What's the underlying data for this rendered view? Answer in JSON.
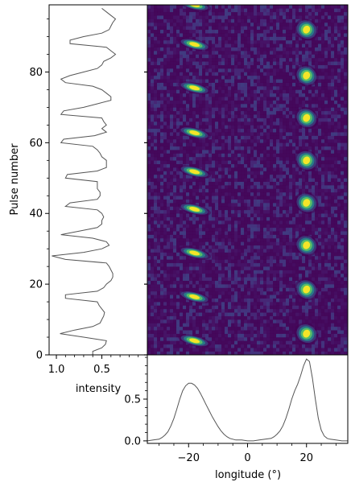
{
  "chart_data": [
    {
      "type": "line",
      "panel": "pulse-energy",
      "xlabel": "intensity",
      "ylabel": "",
      "x_inverted": true,
      "xlim": [
        1.08,
        0.0
      ],
      "ylim": [
        0,
        99
      ],
      "xticks": [
        1.0,
        0.5
      ],
      "xtick_labels": [
        "1.0",
        "0.5"
      ],
      "series": [
        {
          "x": [
            0.6,
            0.6,
            0.5,
            0.46,
            0.45,
            0.7,
            0.96,
            0.8,
            0.6,
            0.52,
            0.5,
            0.48,
            0.47,
            0.5,
            0.53,
            0.55,
            0.9,
            0.9,
            0.55,
            0.48,
            0.45,
            0.4,
            0.38,
            0.38,
            0.4,
            0.42,
            0.45,
            0.9,
            1.05,
            0.7,
            0.5,
            0.42,
            0.45,
            0.6,
            0.95,
            0.75,
            0.55,
            0.5,
            0.5,
            0.48,
            0.5,
            0.55,
            0.9,
            0.85,
            0.55,
            0.52,
            0.52,
            0.55,
            0.55,
            0.55,
            0.9,
            0.88,
            0.55,
            0.45,
            0.45,
            0.45,
            0.5,
            0.52,
            0.55,
            0.6,
            0.95,
            0.92,
            0.58,
            0.45,
            0.5,
            0.45,
            0.48,
            0.5,
            0.95,
            0.92,
            0.7,
            0.55,
            0.4,
            0.4,
            0.45,
            0.5,
            0.6,
            0.9,
            0.95,
            0.85,
            0.7,
            0.55,
            0.5,
            0.48,
            0.4,
            0.35,
            0.4,
            0.45,
            0.85,
            0.85,
            0.7,
            0.5,
            0.42,
            0.4,
            0.38,
            0.35,
            0.4,
            0.45,
            0.5
          ],
          "y": [
            0,
            1,
            2,
            3,
            4,
            5,
            6,
            7,
            8,
            9,
            10,
            11,
            12,
            13,
            14,
            15,
            16,
            17,
            18,
            19,
            20,
            21,
            22,
            23,
            24,
            25,
            26,
            27,
            28,
            29,
            30,
            31,
            32,
            33,
            34,
            35,
            36,
            37,
            38,
            39,
            40,
            41,
            42,
            43,
            44,
            45,
            46,
            47,
            48,
            49,
            50,
            51,
            52,
            53,
            54,
            55,
            56,
            57,
            58,
            59,
            60,
            61,
            62,
            63,
            64,
            65,
            66,
            67,
            68,
            69,
            70,
            71,
            72,
            73,
            74,
            75,
            76,
            77,
            78,
            79,
            80,
            81,
            82,
            83,
            84,
            85,
            86,
            87,
            88,
            89,
            90,
            91,
            92,
            93,
            94,
            95,
            96,
            97,
            98
          ]
        }
      ]
    },
    {
      "type": "heatmap",
      "panel": "single-pulses",
      "xlabel": "",
      "ylabel": "Pulse number",
      "xlim": [
        -34,
        34
      ],
      "ylim": [
        0,
        99
      ],
      "yticks": [
        0,
        20,
        40,
        60,
        80
      ],
      "ytick_labels": [
        "0",
        "20",
        "40",
        "60",
        "80"
      ],
      "colormap": [
        "#440154",
        "#3b528b",
        "#21918c",
        "#5ec962",
        "#fde725"
      ],
      "background_color": "#451a6b",
      "component_left": {
        "center_longitude": -18,
        "drift_degrees_per_pulse": 0.5,
        "drift_period_pulses": 12.4,
        "peak_pulses": [
          4,
          16.4,
          28.8,
          41.2,
          51.8,
          62.8,
          75.5,
          87.8,
          99.0
        ]
      },
      "component_right": {
        "center_longitude": 20,
        "drift_degrees_per_pulse": 0.5,
        "drift_period_pulses": 12.4,
        "peak_pulses": [
          6,
          18.5,
          31.0,
          43.0,
          55.0,
          67.0,
          79.0,
          92.0
        ]
      }
    },
    {
      "type": "line",
      "panel": "integrated-profile",
      "xlabel": "longitude (°)",
      "ylabel": "",
      "xlim": [
        -34,
        34
      ],
      "ylim": [
        -0.03,
        1.03
      ],
      "xticks": [
        -20,
        0,
        20
      ],
      "xtick_labels": [
        "−20",
        "0",
        "20"
      ],
      "yticks": [
        0.0,
        0.5
      ],
      "ytick_labels": [
        "0.0",
        "0.5"
      ],
      "series": [
        {
          "x": [
            -34,
            -32,
            -30,
            -29,
            -28,
            -27,
            -26,
            -25,
            -24,
            -23,
            -22,
            -21,
            -20,
            -19,
            -18,
            -17,
            -16,
            -15,
            -14,
            -13,
            -12,
            -11,
            -10,
            -9,
            -8,
            -7,
            -6,
            -5,
            -4,
            -2,
            0,
            2,
            4,
            6,
            8,
            9,
            10,
            11,
            12,
            13,
            14,
            15,
            16,
            17,
            18,
            19,
            20,
            21,
            22,
            23,
            24,
            25,
            26,
            27,
            28,
            30,
            32,
            34
          ],
          "y": [
            0.0,
            0.01,
            0.02,
            0.04,
            0.07,
            0.11,
            0.18,
            0.27,
            0.38,
            0.5,
            0.6,
            0.66,
            0.69,
            0.69,
            0.67,
            0.63,
            0.57,
            0.5,
            0.43,
            0.36,
            0.29,
            0.23,
            0.17,
            0.12,
            0.08,
            0.05,
            0.03,
            0.02,
            0.01,
            0.01,
            0.0,
            0.0,
            0.01,
            0.02,
            0.03,
            0.05,
            0.08,
            0.12,
            0.18,
            0.27,
            0.38,
            0.5,
            0.6,
            0.68,
            0.78,
            0.9,
            0.98,
            0.95,
            0.75,
            0.5,
            0.27,
            0.13,
            0.06,
            0.03,
            0.02,
            0.01,
            0.0,
            0.0
          ]
        }
      ]
    }
  ]
}
